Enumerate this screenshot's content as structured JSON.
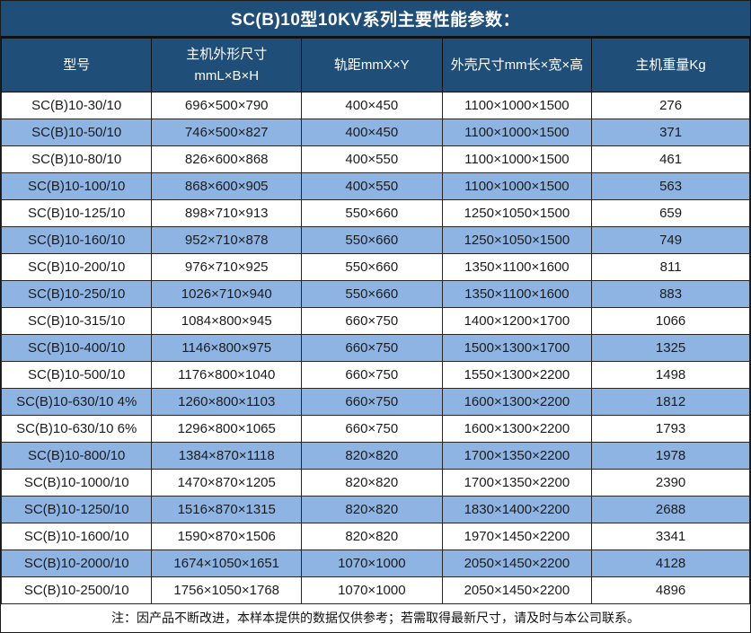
{
  "title": "SC(B)10型10KV系列主要性能参数：",
  "table": {
    "headers": [
      "型号",
      "主机外形尺寸\nmmL×B×H",
      "轨距mmX×Y",
      "外壳尺寸mm长×宽×高",
      "主机重量Kg"
    ],
    "rows": [
      [
        "SC(B)10-30/10",
        "696×500×790",
        "400×450",
        "1100×1000×1500",
        "276"
      ],
      [
        "SC(B)10-50/10",
        "746×500×827",
        "400×450",
        "1100×1000×1500",
        "371"
      ],
      [
        "SC(B)10-80/10",
        "826×600×868",
        "400×550",
        "1100×1000×1500",
        "461"
      ],
      [
        "SC(B)10-100/10",
        "868×600×905",
        "400×550",
        "1100×1000×1500",
        "563"
      ],
      [
        "SC(B)10-125/10",
        "898×710×913",
        "550×660",
        "1250×1050×1500",
        "659"
      ],
      [
        "SC(B)10-160/10",
        "952×710×878",
        "550×660",
        "1250×1050×1500",
        "749"
      ],
      [
        "SC(B)10-200/10",
        "976×710×925",
        "550×660",
        "1350×1100×1600",
        "811"
      ],
      [
        "SC(B)10-250/10",
        "1026×710×940",
        "550×660",
        "1350×1100×1600",
        "883"
      ],
      [
        "SC(B)10-315/10",
        "1084×800×945",
        "660×750",
        "1400×1200×1700",
        "1066"
      ],
      [
        "SC(B)10-400/10",
        "1146×800×975",
        "660×750",
        "1500×1300×1700",
        "1325"
      ],
      [
        "SC(B)10-500/10",
        "1176×800×1040",
        "660×750",
        "1550×1300×2200",
        "1498"
      ],
      [
        "SC(B)10-630/10 4%",
        "1260×800×1103",
        "660×750",
        "1600×1300×2200",
        "1812"
      ],
      [
        "SC(B)10-630/10 6%",
        "1296×800×1065",
        "660×750",
        "1600×1300×2200",
        "1793"
      ],
      [
        "SC(B)10-800/10",
        "1384×870×1118",
        "820×820",
        "1700×1350×2200",
        "1978"
      ],
      [
        "SC(B)10-1000/10",
        "1470×870×1205",
        "820×820",
        "1700×1350×2200",
        "2390"
      ],
      [
        "SC(B)10-1250/10",
        "1516×870×1315",
        "820×820",
        "1830×1400×2200",
        "2688"
      ],
      [
        "SC(B)10-1600/10",
        "1590×870×1506",
        "820×820",
        "1970×1450×2200",
        "3341"
      ],
      [
        "SC(B)10-2000/10",
        "1674×1050×1651",
        "1070×1000",
        "2050×1450×2200",
        "4128"
      ],
      [
        "SC(B)10-2500/10",
        "1756×1050×1768",
        "1070×1000",
        "2050×1450×2200",
        "4896"
      ]
    ]
  },
  "footer_note": "注：因产品不断改进，本样本提供的数据仅供参考；若需取得最新尺寸，请及时与本公司联系。",
  "colors": {
    "header_bg": "#1F4E79",
    "row_bg": "#FFFFFF",
    "row_alt_bg": "#8DB4E2",
    "header_text": "#FFFFFF",
    "body_text": "#1C1C1C",
    "border": "#262626"
  }
}
